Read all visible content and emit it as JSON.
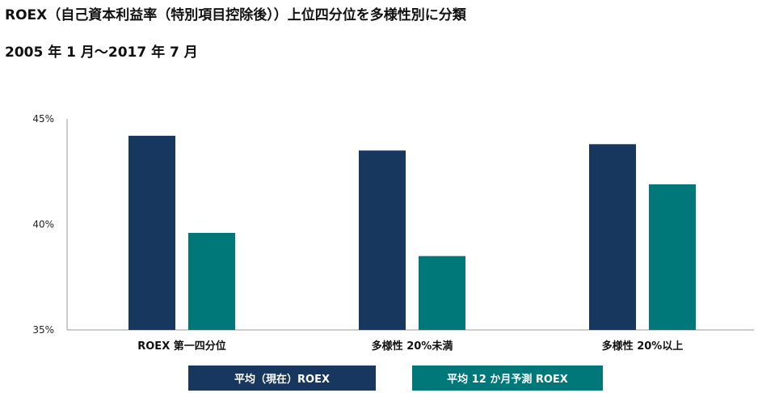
{
  "title": "ROEX（自己資本利益率（特別項目控除後））上位四分位を多様性別に分類",
  "subtitle": "2005 年 1 月～2017 年 7 月",
  "colors": {
    "series1": "#17375e",
    "series2": "#00787a"
  },
  "chart_data": {
    "type": "bar",
    "categories": [
      "ROEX 第一四分位",
      "多様性 20%未満",
      "多様性 20%以上"
    ],
    "series": [
      {
        "name": "平均（現在）ROEX",
        "values": [
          44.2,
          43.5,
          43.8
        ]
      },
      {
        "name": "平均 12 か月予測 ROEX",
        "values": [
          39.6,
          38.5,
          41.9
        ]
      }
    ],
    "ylim": [
      35,
      45
    ],
    "yticks": [
      "35%",
      "40%",
      "45%"
    ],
    "legend_position": "bottom",
    "grid": false
  }
}
